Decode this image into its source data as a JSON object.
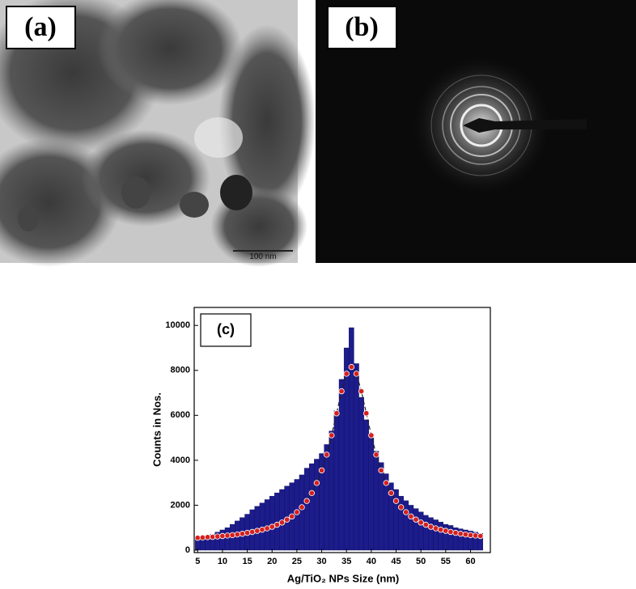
{
  "images": [
    {
      "label": "(a)",
      "scale_bar": "100 nm"
    },
    {
      "label": "(b)"
    }
  ],
  "chart_data": {
    "type": "histogram",
    "annotation": "(c)",
    "xlabel": "Ag/TiO₂ NPs Size (nm)",
    "ylabel": "Counts in Nos.",
    "bins": [
      4.5,
      5.5,
      6.5,
      7.5,
      8.5,
      9.5,
      10.5,
      11.5,
      12.5,
      13.5,
      14.5,
      15.5,
      16.5,
      17.5,
      18.5,
      19.5,
      20.5,
      21.5,
      22.5,
      23.5,
      24.5,
      25.5,
      26.5,
      27.5,
      28.5,
      29.5,
      30.5,
      31.5,
      32.5,
      33.5,
      34.5,
      35.5,
      36.5,
      37.5,
      38.5,
      39.5,
      40.5,
      41.5,
      42.5,
      43.5,
      44.5,
      45.5,
      46.5,
      47.5,
      48.5,
      49.5,
      50.5,
      51.5,
      52.5,
      53.5,
      54.5,
      55.5,
      56.5,
      57.5,
      58.5,
      59.5,
      60.5,
      61.5,
      62.5
    ],
    "values": [
      500,
      550,
      600,
      700,
      800,
      900,
      1000,
      1150,
      1300,
      1450,
      1600,
      1800,
      1950,
      2100,
      2250,
      2400,
      2550,
      2700,
      2850,
      3000,
      3150,
      3350,
      3650,
      3850,
      4050,
      4300,
      4700,
      5300,
      6200,
      7600,
      9000,
      9900,
      8300,
      6800,
      5800,
      5000,
      4400,
      3900,
      3400,
      3000,
      2700,
      2400,
      2200,
      2000,
      1850,
      1700,
      1550,
      1450,
      1350,
      1250,
      1150,
      1100,
      1000,
      950,
      900,
      850,
      800,
      750
    ],
    "color": "#1c1c8c",
    "fit": {
      "color": "#d42020",
      "x": [
        5,
        6,
        7,
        8,
        9,
        10,
        11,
        12,
        13,
        14,
        15,
        16,
        17,
        18,
        19,
        20,
        21,
        22,
        23,
        24,
        25,
        26,
        27,
        28,
        29,
        30,
        31,
        32,
        33,
        34,
        35,
        36,
        37,
        38,
        39,
        40,
        41,
        42,
        43,
        44,
        45,
        46,
        47,
        48,
        49,
        50,
        51,
        52,
        53,
        54,
        55,
        56,
        57,
        58,
        59,
        60,
        61,
        62
      ],
      "values": [
        550,
        560,
        580,
        590,
        610,
        630,
        650,
        670,
        700,
        730,
        770,
        810,
        860,
        910,
        970,
        1040,
        1130,
        1230,
        1360,
        1500,
        1690,
        1910,
        2190,
        2540,
        2990,
        3550,
        4250,
        5110,
        6090,
        7070,
        7850,
        8150,
        7850,
        7070,
        6090,
        5110,
        4250,
        3550,
        2990,
        2540,
        2190,
        1910,
        1690,
        1500,
        1360,
        1230,
        1130,
        1040,
        970,
        910,
        860,
        810,
        770,
        730,
        700,
        670,
        650,
        630
      ]
    },
    "xlim": [
      4.3,
      64
    ],
    "ylim": [
      0,
      10800
    ],
    "xticks": [
      5,
      10,
      15,
      20,
      25,
      30,
      35,
      40,
      45,
      50,
      55,
      60
    ],
    "yticks": [
      0,
      2000,
      4000,
      6000,
      8000,
      10000
    ]
  }
}
